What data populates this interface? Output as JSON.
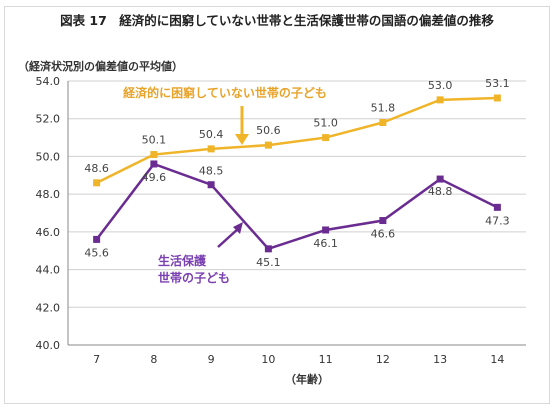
{
  "chart_data": {
    "type": "line",
    "title": "図表 17　経済的に困窮していない世帯と生活保護世帯の国語の偏差値の推移",
    "ylabel": "（経済状況別の偏差値の平均値）",
    "xlabel": "（年齢）",
    "categories": [
      "7",
      "8",
      "9",
      "10",
      "11",
      "12",
      "13",
      "14"
    ],
    "ylim": [
      40.0,
      54.0
    ],
    "yticks": [
      "40.0",
      "42.0",
      "44.0",
      "46.0",
      "48.0",
      "50.0",
      "52.0",
      "54.0"
    ],
    "grid": true,
    "series": [
      {
        "name": "経済的に困窮していない世帯の子ども",
        "color": "#f0b429",
        "values": [
          48.6,
          50.1,
          50.4,
          50.6,
          51.0,
          51.8,
          53.0,
          53.1
        ],
        "labels": [
          "48.6",
          "50.1",
          "50.4",
          "50.6",
          "51.0",
          "51.8",
          "53.0",
          "53.1"
        ]
      },
      {
        "name_lines": [
          "生活保護",
          "世帯の子ども"
        ],
        "color": "#6a2c91",
        "values": [
          45.6,
          49.6,
          48.5,
          45.1,
          46.1,
          46.6,
          48.8,
          47.3
        ],
        "labels": [
          "45.6",
          "49.6",
          "48.5",
          "45.1",
          "46.1",
          "46.6",
          "48.8",
          "47.3"
        ]
      }
    ]
  }
}
